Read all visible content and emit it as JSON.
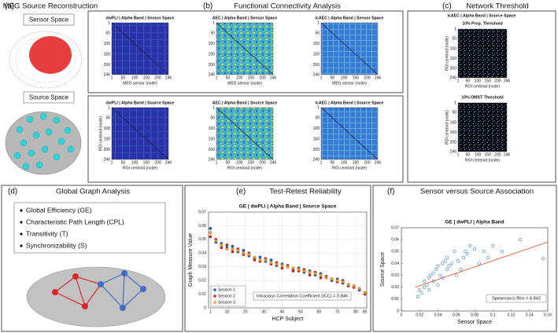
{
  "panels": {
    "a": {
      "label": "(a)",
      "title": "MEG Source Reconstruction",
      "sensor": "Sensor Space",
      "source": "Source Space"
    },
    "b": {
      "label": "(b)",
      "title": "Functional Connectivity Analysis",
      "rows": [
        {
          "heatmaps": [
            "dwPLI | Alpha Band | Sensor Space",
            "AEC | Alpha Band | Sensor Space",
            "lcAEC | Alpha Band | Sensor Space"
          ],
          "axis_label": "MEG sensor (node)"
        },
        {
          "heatmaps": [
            "dwPLI | Alpha Band | Source Space",
            "AEC | Alpha Band | Source Space",
            "lcAEC | Alpha Band | Source Space"
          ],
          "axis_label": "ROI centroid (node)"
        }
      ]
    },
    "c": {
      "label": "(c)",
      "title": "Network Threshold",
      "subtitle": "lcAEC | Alpha Band | Source Space",
      "maps": [
        "10% Prop. Threshold",
        "10% OMST Threshold"
      ],
      "axis_label": "ROI centroid (node)"
    },
    "d": {
      "label": "(d)",
      "title": "Global Graph Analysis",
      "items": [
        "Global Efficiency (GE)",
        "Characteristic Path Length (CPL)",
        "Transitivity (T)",
        "Synchronizability (S)"
      ]
    }
  },
  "matrix_ticks": [
    1,
    50,
    100,
    150,
    200,
    246
  ],
  "chart_data": [
    {
      "type": "scatter",
      "panel_label": "(e)",
      "heading": "Test-Retest Reliability",
      "title": "GE | dwPLI | Alpha Band | Source Space",
      "x_label": "HCP Subject",
      "y_label": "Graph Measure Value",
      "x": [
        1,
        4,
        7,
        10,
        13,
        16,
        19,
        22,
        25,
        28,
        31,
        34,
        37,
        40,
        43,
        46,
        49,
        52,
        55,
        58,
        61,
        64,
        67,
        70,
        73,
        76,
        79,
        82,
        85
      ],
      "series": [
        {
          "name": "Session 1",
          "color": "#1f5fbf",
          "values": [
            0.058,
            0.048,
            0.047,
            0.044,
            0.045,
            0.041,
            0.042,
            0.038,
            0.036,
            0.037,
            0.034,
            0.035,
            0.031,
            0.032,
            0.03,
            0.028,
            0.029,
            0.026,
            0.027,
            0.024,
            0.025,
            0.022,
            0.02,
            0.021,
            0.018,
            0.017,
            0.016,
            0.013,
            0.011
          ]
        },
        {
          "name": "Session 2",
          "color": "#d62728",
          "values": [
            0.052,
            0.05,
            0.044,
            0.046,
            0.041,
            0.043,
            0.039,
            0.04,
            0.035,
            0.034,
            0.036,
            0.032,
            0.033,
            0.029,
            0.031,
            0.027,
            0.027,
            0.028,
            0.024,
            0.026,
            0.022,
            0.023,
            0.021,
            0.019,
            0.02,
            0.016,
            0.015,
            0.014,
            0.01
          ]
        },
        {
          "name": "Session 3",
          "color": "#f0a020",
          "values": [
            0.055,
            0.049,
            0.046,
            0.043,
            0.043,
            0.042,
            0.04,
            0.039,
            0.037,
            0.035,
            0.035,
            0.033,
            0.032,
            0.031,
            0.03,
            0.029,
            0.028,
            0.027,
            0.026,
            0.025,
            0.024,
            0.022,
            0.021,
            0.02,
            0.019,
            0.017,
            0.016,
            0.014,
            0.011
          ]
        }
      ],
      "xlim": [
        0,
        86
      ],
      "xticks": [
        1,
        10,
        20,
        30,
        40,
        50,
        60,
        70,
        80,
        85
      ],
      "ylim": [
        0,
        0.07
      ],
      "yticks": [
        0,
        0.01,
        0.02,
        0.03,
        0.04,
        0.05,
        0.06,
        0.07
      ],
      "grid": true,
      "legend": "lower left",
      "annotation": "Intraclass Correlation Coefficient (ICC) = 0.846"
    },
    {
      "type": "scatter",
      "panel_label": "(f)",
      "heading": "Sensor versus Source Association",
      "title": "GE | dwPLI | Alpha Band",
      "x_label": "Sensor Space",
      "y_label": "Source Space",
      "color": "#3a7dc9",
      "x": [
        0.018,
        0.02,
        0.022,
        0.025,
        0.025,
        0.028,
        0.03,
        0.03,
        0.032,
        0.035,
        0.035,
        0.038,
        0.04,
        0.04,
        0.042,
        0.045,
        0.045,
        0.048,
        0.05,
        0.05,
        0.052,
        0.055,
        0.058,
        0.06,
        0.062,
        0.065,
        0.068,
        0.07,
        0.072,
        0.075,
        0.08,
        0.085,
        0.09,
        0.095,
        0.1,
        0.11,
        0.13,
        0.155
      ],
      "values": [
        0.012,
        0.018,
        0.015,
        0.02,
        0.025,
        0.022,
        0.028,
        0.018,
        0.03,
        0.025,
        0.032,
        0.035,
        0.022,
        0.038,
        0.03,
        0.04,
        0.028,
        0.042,
        0.035,
        0.045,
        0.038,
        0.04,
        0.05,
        0.03,
        0.042,
        0.035,
        0.045,
        0.05,
        0.048,
        0.055,
        0.052,
        0.04,
        0.05,
        0.045,
        0.055,
        0.05,
        0.06,
        0.044
      ],
      "fit_line": {
        "color": "#e8603a",
        "x": [
          0.015,
          0.16
        ],
        "y": [
          0.02,
          0.058
        ]
      },
      "xlim": [
        0,
        0.16
      ],
      "xticks": [
        0,
        0.02,
        0.04,
        0.06,
        0.08,
        0.1,
        0.12,
        0.14,
        0.16
      ],
      "ylim": [
        0,
        0.07
      ],
      "yticks": [
        0,
        0.01,
        0.02,
        0.03,
        0.04,
        0.05,
        0.06,
        0.07
      ],
      "grid": false,
      "annotation": "Spearman's Rho = 0.842"
    }
  ]
}
